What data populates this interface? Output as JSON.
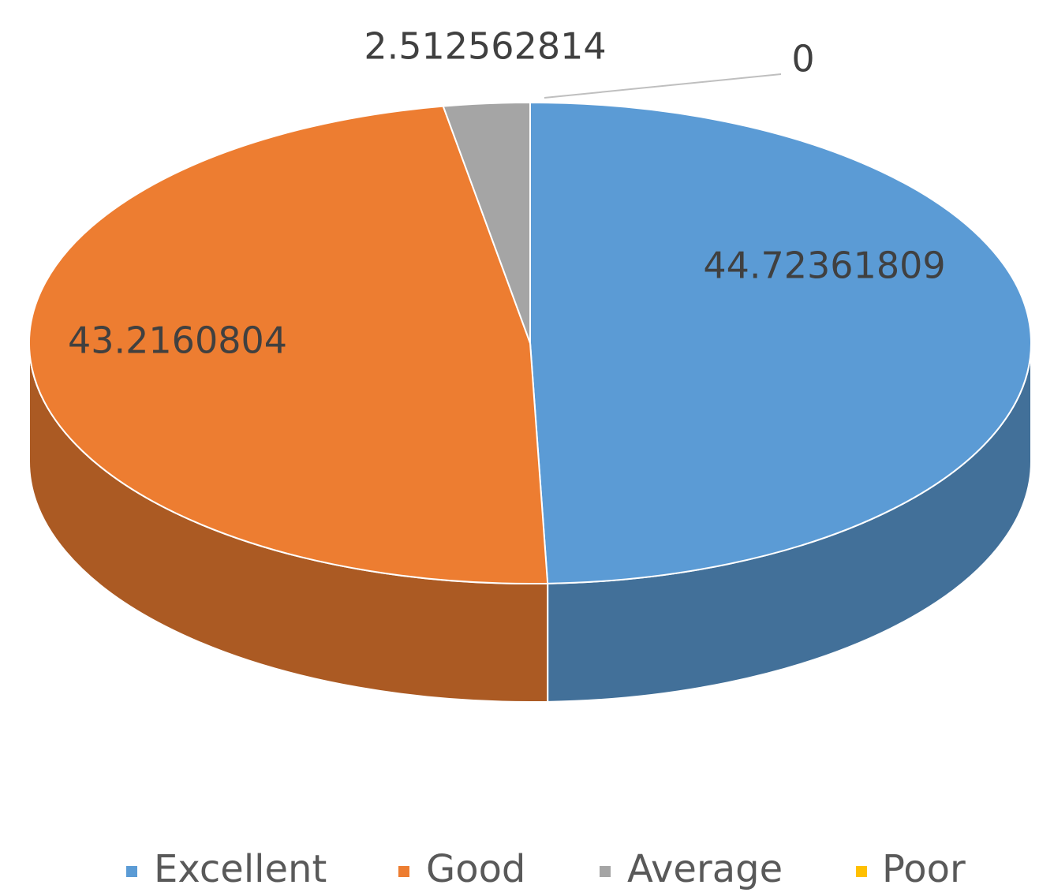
{
  "chart_data": {
    "type": "pie",
    "categories": [
      "Excellent",
      "Good",
      "Average",
      "Poor"
    ],
    "values": [
      44.72361809,
      43.2160804,
      2.512562814,
      0
    ],
    "colors": [
      "#5b9bd5",
      "#ed7d31",
      "#a5a5a5",
      "#ffc000"
    ],
    "legend": "bottom"
  }
}
